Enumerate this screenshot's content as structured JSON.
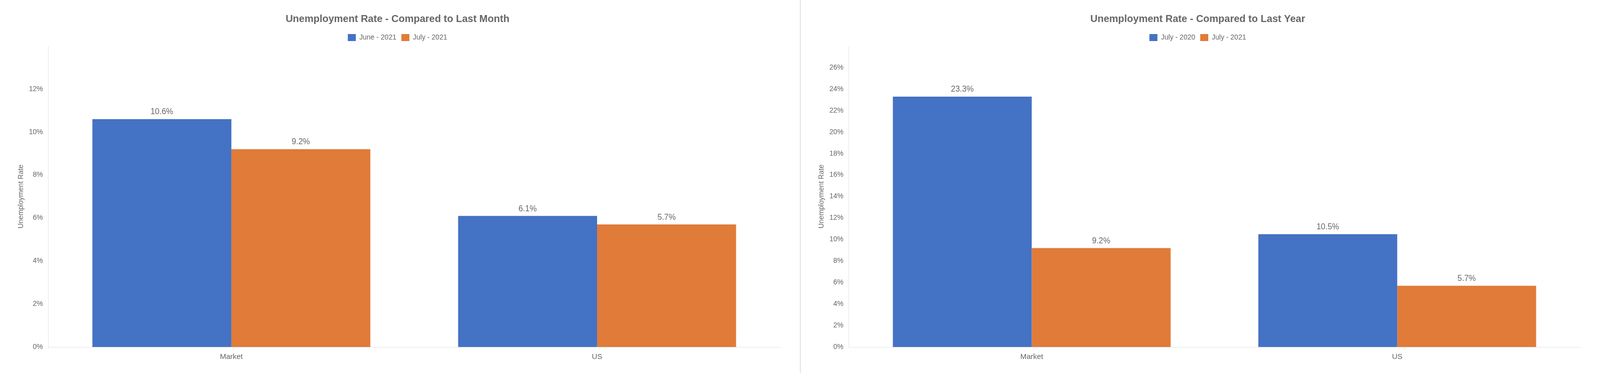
{
  "chart_data": [
    {
      "type": "bar",
      "title": "Unemployment Rate - Compared to Last Month",
      "ylabel": "Unemployment Rate",
      "categories": [
        "Market",
        "US"
      ],
      "series": [
        {
          "name": "June - 2021",
          "color": "#4472c4",
          "values": [
            0.106,
            0.061
          ],
          "value_labels": [
            "10.6%",
            "6.1%"
          ]
        },
        {
          "name": "July - 2021",
          "color": "#e07b39",
          "values": [
            0.092,
            0.057
          ],
          "value_labels": [
            "9.2%",
            "5.7%"
          ]
        }
      ],
      "ylim": [
        0,
        0.14
      ],
      "yticks": [
        {
          "value": 0,
          "label": "0%"
        },
        {
          "value": 0.02,
          "label": "2%"
        },
        {
          "value": 0.04,
          "label": "4%"
        },
        {
          "value": 0.06,
          "label": "6%"
        },
        {
          "value": 0.08,
          "label": "8%"
        },
        {
          "value": 0.1,
          "label": "10%"
        },
        {
          "value": 0.12,
          "label": "12%"
        }
      ],
      "grid": false,
      "legend": "top",
      "data_labels": true
    },
    {
      "type": "bar",
      "title": "Unemployment Rate - Compared to Last Year",
      "ylabel": "Unemployment Rate",
      "categories": [
        "Market",
        "US"
      ],
      "series": [
        {
          "name": "July - 2020",
          "color": "#4472c4",
          "values": [
            0.233,
            0.105
          ],
          "value_labels": [
            "23.3%",
            "10.5%"
          ]
        },
        {
          "name": "July - 2021",
          "color": "#e07b39",
          "values": [
            0.092,
            0.057
          ],
          "value_labels": [
            "9.2%",
            "5.7%"
          ]
        }
      ],
      "ylim": [
        0,
        0.28
      ],
      "yticks": [
        {
          "value": 0,
          "label": "0%"
        },
        {
          "value": 0.02,
          "label": "2%"
        },
        {
          "value": 0.04,
          "label": "4%"
        },
        {
          "value": 0.06,
          "label": "6%"
        },
        {
          "value": 0.08,
          "label": "8%"
        },
        {
          "value": 0.1,
          "label": "10%"
        },
        {
          "value": 0.12,
          "label": "12%"
        },
        {
          "value": 0.14,
          "label": "14%"
        },
        {
          "value": 0.16,
          "label": "16%"
        },
        {
          "value": 0.18,
          "label": "18%"
        },
        {
          "value": 0.2,
          "label": "20%"
        },
        {
          "value": 0.22,
          "label": "22%"
        },
        {
          "value": 0.24,
          "label": "24%"
        },
        {
          "value": 0.26,
          "label": "26%"
        }
      ],
      "grid": false,
      "legend": "top",
      "data_labels": true
    }
  ]
}
